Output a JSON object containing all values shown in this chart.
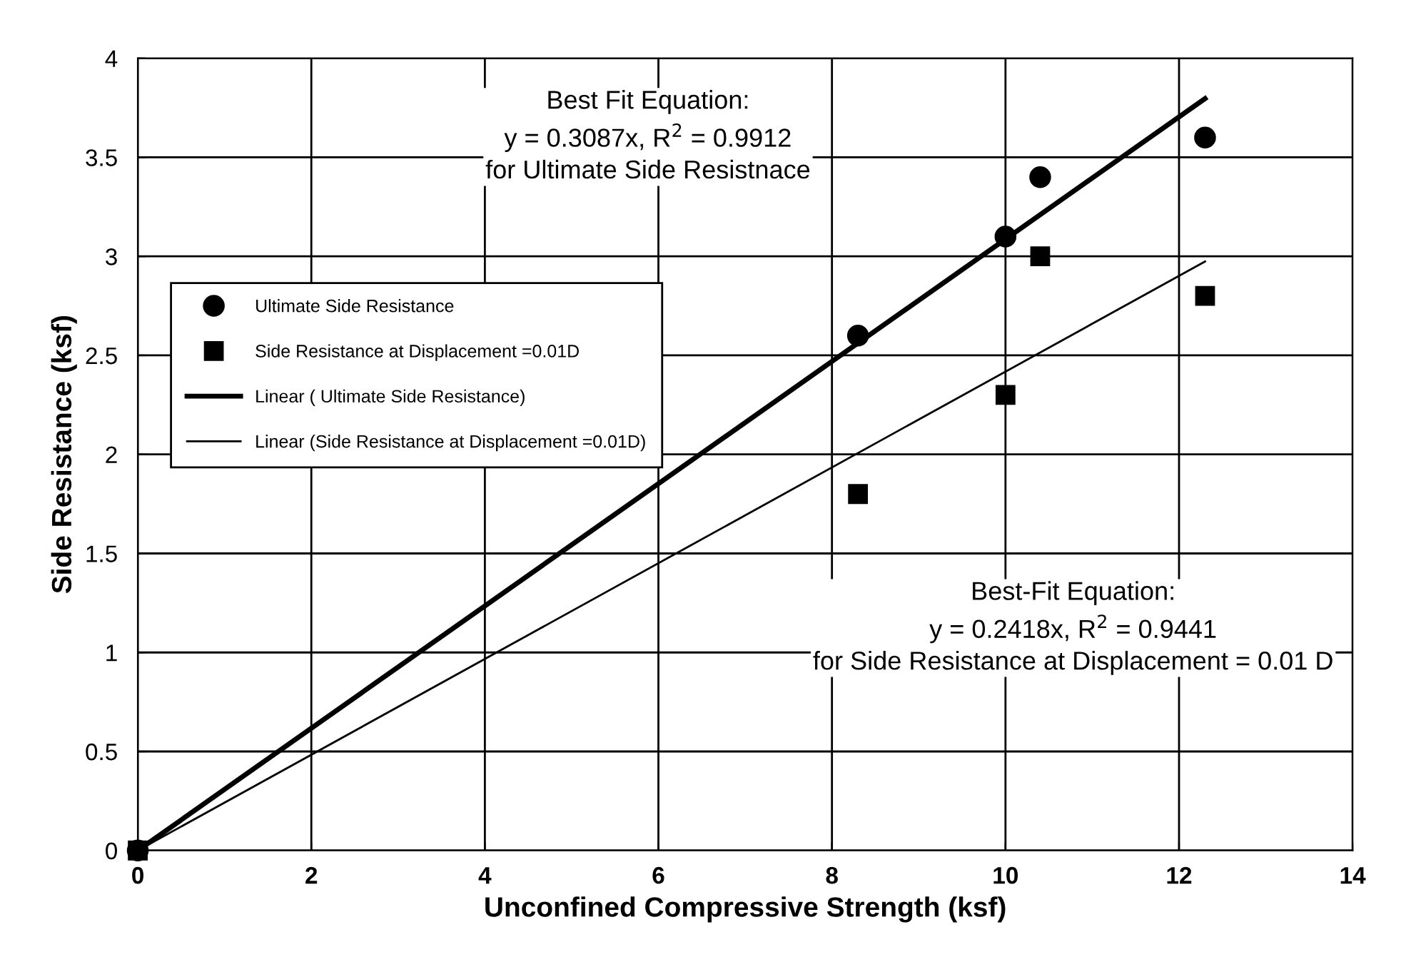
{
  "chart_data": {
    "type": "scatter",
    "xlabel": "Unconfined Compressive Strength (ksf)",
    "ylabel": "Side Resistance (ksf)",
    "xlim": [
      0,
      14
    ],
    "xticks": [
      0,
      2,
      4,
      6,
      8,
      10,
      12,
      14
    ],
    "ylim": [
      0,
      4
    ],
    "yticks": [
      0,
      0.5,
      1,
      1.5,
      2,
      2.5,
      3,
      3.5,
      4
    ],
    "grid": true,
    "legend": "left",
    "series": [
      {
        "name": "Ultimate Side Resistance",
        "marker": "circle",
        "color": "#000000",
        "x": [
          0,
          8.3,
          10,
          10.4,
          12.3
        ],
        "values": [
          0,
          2.6,
          3.1,
          3.4,
          3.6
        ]
      },
      {
        "name": "Side Resistance at Displacement =0.01D",
        "marker": "square",
        "color": "#000000",
        "x": [
          0,
          8.3,
          10,
          10.4,
          12.3
        ],
        "values": [
          0,
          1.8,
          2.3,
          3.0,
          2.8
        ]
      },
      {
        "name": "Linear ( Ultimate Side Resistance)",
        "type": "line",
        "marker": "none",
        "line_style": "solid",
        "color": "#000000",
        "x": [
          0,
          12.3
        ],
        "values": [
          0,
          3.797
        ]
      },
      {
        "name": "Linear (Side Resistance at Displacement =0.01D)",
        "type": "line",
        "marker": "none",
        "line_style": "solid",
        "color": "#000000",
        "x": [
          0,
          12.3
        ],
        "values": [
          0,
          2.974
        ]
      }
    ],
    "annotations": [
      "Best Fit Equation:\ny = 0.3087x, R$^{2}$ = 0.9912\nfor Ultimate Side Resistnace",
      "Best-Fit Equation:\ny = 0.2418x, R$^{2}$ = 0.9441\nfor Side Resistance at Displacement = 0.01 D"
    ]
  }
}
